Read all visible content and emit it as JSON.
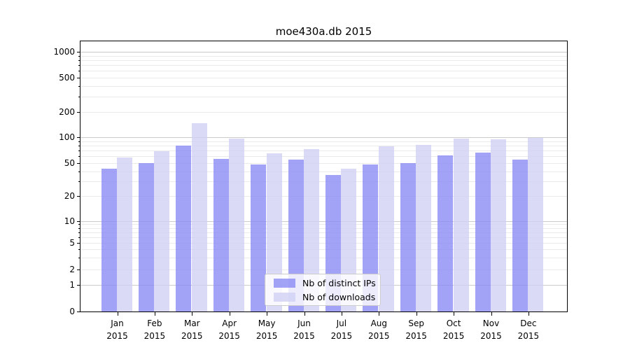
{
  "figure": {
    "background": "#ffffff"
  },
  "chart_data": {
    "type": "bar",
    "title": "moe430a.db 2015",
    "x_categories": [
      "Jan",
      "Feb",
      "Mar",
      "Apr",
      "May",
      "Jun",
      "Jul",
      "Aug",
      "Sep",
      "Oct",
      "Nov",
      "Dec"
    ],
    "x_year_line": "2015",
    "series": [
      {
        "name": "Nb of distinct IPs",
        "color": "rgba(136,136,243,0.78)",
        "values": [
          43,
          50,
          80,
          56,
          48,
          55,
          36,
          48,
          50,
          61,
          66,
          55
        ]
      },
      {
        "name": "Nb of downloads",
        "color": "rgba(208,208,245,0.78)",
        "values": [
          58,
          69,
          147,
          96,
          65,
          73,
          43,
          78,
          82,
          96,
          94,
          99
        ]
      }
    ],
    "y_ticks": [
      0,
      1,
      2,
      5,
      10,
      20,
      50,
      100,
      200,
      500,
      1000
    ],
    "y_scale": "symlog",
    "ylim": [
      0,
      1200
    ],
    "xlabel": "",
    "ylabel": "",
    "grid": true,
    "legend_position": "lower center"
  },
  "colors": {
    "grid_major": "#cbcbcb",
    "grid_minor": "#eaeaea",
    "axis": "#000000",
    "legend_border": "#cccccc",
    "legend_background": "rgba(255,255,255,0.8)"
  }
}
